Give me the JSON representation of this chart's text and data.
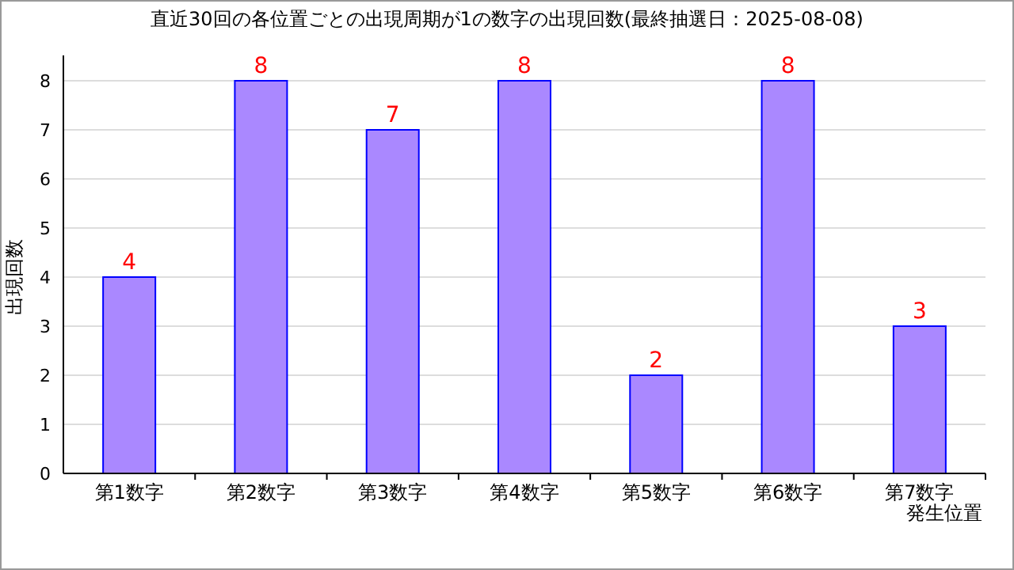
{
  "chart_data": {
    "type": "bar",
    "title": "直近30回の各位置ごとの出現周期が1の数字の出現回数(最終抽選日：2025-08-08)",
    "xlabel": "発生位置",
    "ylabel": "出現回数",
    "categories": [
      "第1数字",
      "第2数字",
      "第3数字",
      "第4数字",
      "第5数字",
      "第6数字",
      "第7数字"
    ],
    "values": [
      4,
      8,
      7,
      8,
      2,
      8,
      3
    ],
    "color": "#aa88ff",
    "ylim": [
      0,
      8
    ],
    "yticks": [
      0,
      1,
      2,
      3,
      4,
      5,
      6,
      7,
      8
    ],
    "grid": "y",
    "data_labels": true
  }
}
